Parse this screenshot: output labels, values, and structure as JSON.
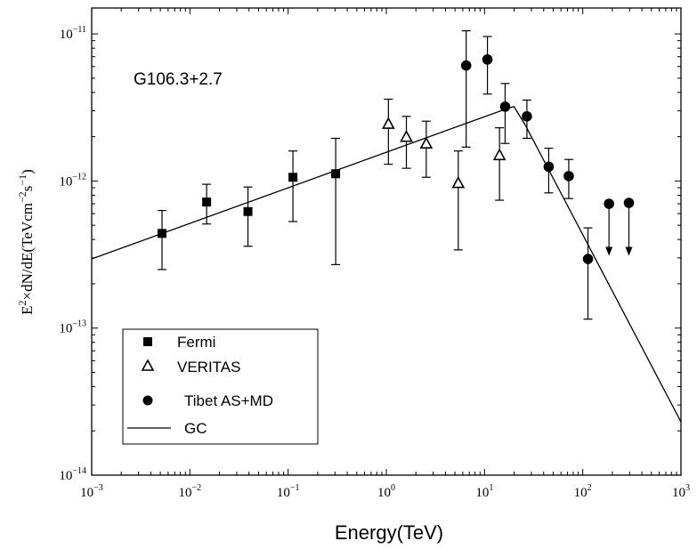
{
  "chart_data": {
    "type": "scatter",
    "annotation": "G106.3+2.7",
    "xlabel": "Energy(TeV)",
    "ylabel": {
      "base": "E",
      "sq": "2",
      "mid": "×dN/dE(TeVcm",
      "e1": "−2",
      "s": "s",
      "e2": "−1",
      "end": ")"
    },
    "xscale": "log",
    "yscale": "log",
    "xlim": [
      0.001,
      1000
    ],
    "ylim": [
      1e-14,
      1.5e-11
    ],
    "xticks": [
      {
        "value": 0.001,
        "base": "10",
        "exp": "−3"
      },
      {
        "value": 0.01,
        "base": "10",
        "exp": "−2"
      },
      {
        "value": 0.1,
        "base": "10",
        "exp": "−1"
      },
      {
        "value": 1,
        "base": "10",
        "exp": "0"
      },
      {
        "value": 10,
        "base": "10",
        "exp": "1"
      },
      {
        "value": 100,
        "base": "10",
        "exp": "2"
      },
      {
        "value": 1000,
        "base": "10",
        "exp": "3"
      }
    ],
    "yticks": [
      {
        "value": 1e-14,
        "base": "10",
        "exp": "−14"
      },
      {
        "value": 1e-13,
        "base": "10",
        "exp": "−13"
      },
      {
        "value": 1e-12,
        "base": "10",
        "exp": "−12"
      },
      {
        "value": 1e-11,
        "base": "10",
        "exp": "−11"
      }
    ],
    "legend_position": "bottom-left",
    "series": [
      {
        "name": "Fermi",
        "marker": "square",
        "points": [
          {
            "x": 0.0052,
            "y": 4.4e-13,
            "ylo": 2.5e-13,
            "yhi": 6.3e-13
          },
          {
            "x": 0.0148,
            "y": 7.2e-13,
            "ylo": 5.1e-13,
            "yhi": 9.5e-13
          },
          {
            "x": 0.039,
            "y": 6.2e-13,
            "ylo": 3.6e-13,
            "yhi": 9.1e-13
          },
          {
            "x": 0.112,
            "y": 1.06e-12,
            "ylo": 5.3e-13,
            "yhi": 1.6e-12
          },
          {
            "x": 0.305,
            "y": 1.12e-12,
            "ylo": 2.7e-13,
            "yhi": 1.95e-12
          }
        ]
      },
      {
        "name": "VERITAS",
        "marker": "triangle-open",
        "points": [
          {
            "x": 1.05,
            "y": 2.45e-12,
            "ylo": 1.3e-12,
            "yhi": 3.6e-12
          },
          {
            "x": 1.6,
            "y": 2e-12,
            "ylo": 1.22e-12,
            "yhi": 2.75e-12
          },
          {
            "x": 2.55,
            "y": 1.8e-12,
            "ylo": 1.06e-12,
            "yhi": 2.55e-12
          },
          {
            "x": 5.4,
            "y": 9.7e-13,
            "ylo": 3.4e-13,
            "yhi": 1.6e-12
          },
          {
            "x": 14.2,
            "y": 1.5e-12,
            "ylo": 7.4e-13,
            "yhi": 2.3e-12
          }
        ]
      },
      {
        "name": "Tibet AS+MD",
        "marker": "circle",
        "points": [
          {
            "x": 6.5,
            "y": 6.1e-12,
            "ylo": 1.7e-12,
            "yhi": 1.05e-11
          },
          {
            "x": 10.7,
            "y": 6.7e-12,
            "ylo": 3.9e-12,
            "yhi": 9.6e-12
          },
          {
            "x": 16.2,
            "y": 3.2e-12,
            "ylo": 1.8e-12,
            "yhi": 4.6e-12
          },
          {
            "x": 27,
            "y": 2.75e-12,
            "ylo": 1.95e-12,
            "yhi": 3.55e-12
          },
          {
            "x": 45,
            "y": 1.25e-12,
            "ylo": 8.3e-13,
            "yhi": 1.67e-12
          },
          {
            "x": 72,
            "y": 1.08e-12,
            "ylo": 7.6e-13,
            "yhi": 1.4e-12
          },
          {
            "x": 113,
            "y": 2.95e-13,
            "ylo": 1.15e-13,
            "yhi": 4.8e-13
          }
        ]
      },
      {
        "name": "Tibet AS+MD upper limits",
        "marker": "circle-arrow-down",
        "points": [
          {
            "x": 185,
            "y": 7e-13,
            "limit": 3.1e-13
          },
          {
            "x": 295,
            "y": 7.1e-13,
            "limit": 3.1e-13
          }
        ]
      },
      {
        "name": "GC",
        "marker": "line",
        "curve": [
          {
            "x": 0.001,
            "y": 2.95e-13
          },
          {
            "x": 18,
            "y": 3.15e-12
          },
          {
            "x": 20,
            "y": 3.2e-12
          },
          {
            "x": 26,
            "y": 2.4e-12
          },
          {
            "x": 1000,
            "y": 2.3e-14
          }
        ]
      }
    ],
    "legend": [
      {
        "label": "Fermi",
        "marker": "square"
      },
      {
        "label": "VERITAS",
        "marker": "triangle-open"
      },
      {
        "label": "Tibet AS+MD",
        "marker": "circle"
      },
      {
        "label": "GC",
        "marker": "line"
      }
    ]
  }
}
